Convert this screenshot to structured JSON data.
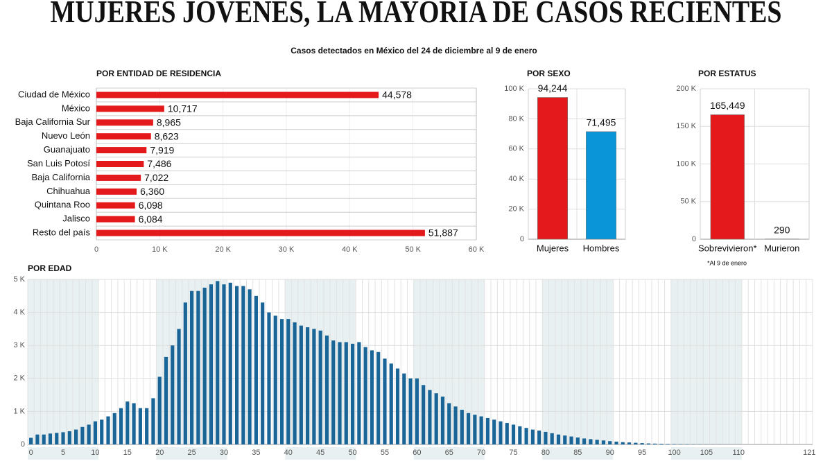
{
  "title": "MUJERES JÓVENES, LA MAYORÍA DE CASOS RECIENTES",
  "subtitle": "Casos detectados en México del 24 de diciembre al 9 de enero",
  "chart_data": [
    {
      "type": "barh",
      "title": "POR ENTIDAD DE RESIDENCIA",
      "categories": [
        "Ciudad de México",
        "México",
        "Baja California Sur",
        "Nuevo León",
        "Guanajuato",
        "San Luis Potosí",
        "Baja California",
        "Chihuahua",
        "Quintana Roo",
        "Jalisco",
        "Resto del país"
      ],
      "values": [
        44578,
        10717,
        8965,
        8623,
        7919,
        7486,
        7022,
        6360,
        6098,
        6084,
        51887
      ],
      "value_labels": [
        "44,578",
        "10,717",
        "8,965",
        "8,623",
        "7,919",
        "7,486",
        "7,022",
        "6,360",
        "6,098",
        "6,084",
        "51,887"
      ],
      "color": "#e3191b",
      "xlim": [
        0,
        60000
      ],
      "xticks": [
        0,
        {
          "value": 10000,
          "label": "10 K"
        },
        {
          "value": 20000,
          "label": "20 K"
        },
        {
          "value": 30000,
          "label": "30 K"
        },
        {
          "value": 40000,
          "label": "40 K"
        },
        {
          "value": 50000,
          "label": "50 K"
        },
        {
          "value": 60000,
          "label": "60 K"
        }
      ]
    },
    {
      "type": "bar",
      "title": "POR SEXO",
      "categories": [
        "Mujeres",
        "Hombres"
      ],
      "values": [
        94244,
        71495
      ],
      "value_labels": [
        "94,244",
        "71,495"
      ],
      "colors": [
        "#e3191b",
        "#0b95d9"
      ],
      "ylim": [
        0,
        100000
      ],
      "yticks": [
        0,
        {
          "value": 20000,
          "label": "20 K"
        },
        {
          "value": 40000,
          "label": "40 K"
        },
        {
          "value": 60000,
          "label": "60 K"
        },
        {
          "value": 80000,
          "label": "80 K"
        },
        {
          "value": 100000,
          "label": "100 K"
        }
      ]
    },
    {
      "type": "bar",
      "title": "POR ESTATUS",
      "categories": [
        "Sobrevivieron*",
        "Murieron"
      ],
      "values": [
        165449,
        290
      ],
      "value_labels": [
        "165,449",
        "290"
      ],
      "colors": [
        "#e3191b",
        "#0b95d9"
      ],
      "note": "*Al 9 de enero",
      "ylim": [
        0,
        200000
      ],
      "yticks": [
        0,
        {
          "value": 50000,
          "label": "50 K"
        },
        {
          "value": 100000,
          "label": "100 K"
        },
        {
          "value": 150000,
          "label": "150 K"
        },
        {
          "value": 200000,
          "label": "200 K"
        }
      ]
    },
    {
      "type": "histbar",
      "title": "POR EDAD",
      "x": [
        0,
        1,
        2,
        3,
        4,
        5,
        6,
        7,
        8,
        9,
        10,
        11,
        12,
        13,
        14,
        15,
        16,
        17,
        18,
        19,
        20,
        21,
        22,
        23,
        24,
        25,
        26,
        27,
        28,
        29,
        30,
        31,
        32,
        33,
        34,
        35,
        36,
        37,
        38,
        39,
        40,
        41,
        42,
        43,
        44,
        45,
        46,
        47,
        48,
        49,
        50,
        51,
        52,
        53,
        54,
        55,
        56,
        57,
        58,
        59,
        60,
        61,
        62,
        63,
        64,
        65,
        66,
        67,
        68,
        69,
        70,
        71,
        72,
        73,
        74,
        75,
        76,
        77,
        78,
        79,
        80,
        81,
        82,
        83,
        84,
        85,
        86,
        87,
        88,
        89,
        90,
        91,
        92,
        93,
        94,
        95,
        96,
        97,
        98,
        99,
        100,
        101,
        102,
        103,
        104,
        105,
        106,
        107,
        108,
        109,
        110,
        111,
        112,
        113,
        114,
        115,
        116,
        117,
        118,
        119,
        120,
        121
      ],
      "values": [
        200,
        300,
        300,
        330,
        350,
        370,
        400,
        450,
        530,
        600,
        700,
        750,
        850,
        950,
        1100,
        1300,
        1250,
        1100,
        1100,
        1400,
        2050,
        2650,
        3000,
        3500,
        4300,
        4650,
        4650,
        4750,
        4850,
        4950,
        4850,
        4900,
        4800,
        4800,
        4700,
        4500,
        4300,
        4000,
        3900,
        3800,
        3800,
        3700,
        3600,
        3550,
        3500,
        3450,
        3300,
        3150,
        3100,
        3100,
        3050,
        3100,
        2950,
        2850,
        2800,
        2600,
        2450,
        2300,
        2150,
        2000,
        2000,
        1800,
        1650,
        1550,
        1450,
        1250,
        1150,
        1050,
        950,
        900,
        850,
        800,
        750,
        700,
        650,
        600,
        550,
        500,
        450,
        420,
        380,
        340,
        300,
        270,
        240,
        210,
        180,
        160,
        140,
        120,
        100,
        85,
        70,
        60,
        50,
        40,
        30,
        25,
        20,
        15,
        12,
        10,
        8,
        6,
        5,
        4,
        3,
        3,
        2,
        2,
        1,
        1,
        1,
        1,
        1,
        1,
        0,
        0,
        0,
        0,
        0,
        1
      ],
      "color": "#1a6598",
      "xlim": [
        -0.5,
        121.5
      ],
      "xticks": [
        0,
        5,
        10,
        15,
        20,
        25,
        30,
        35,
        40,
        45,
        50,
        55,
        60,
        65,
        70,
        75,
        80,
        85,
        90,
        95,
        100,
        105,
        110,
        121
      ],
      "ylim": [
        0,
        5000
      ],
      "yticks": [
        0,
        {
          "value": 1000,
          "label": "1 K"
        },
        {
          "value": 2000,
          "label": "2 K"
        },
        {
          "value": 3000,
          "label": "3 K"
        },
        {
          "value": 4000,
          "label": "4 K"
        },
        {
          "value": 5000,
          "label": "5 K"
        }
      ]
    }
  ]
}
